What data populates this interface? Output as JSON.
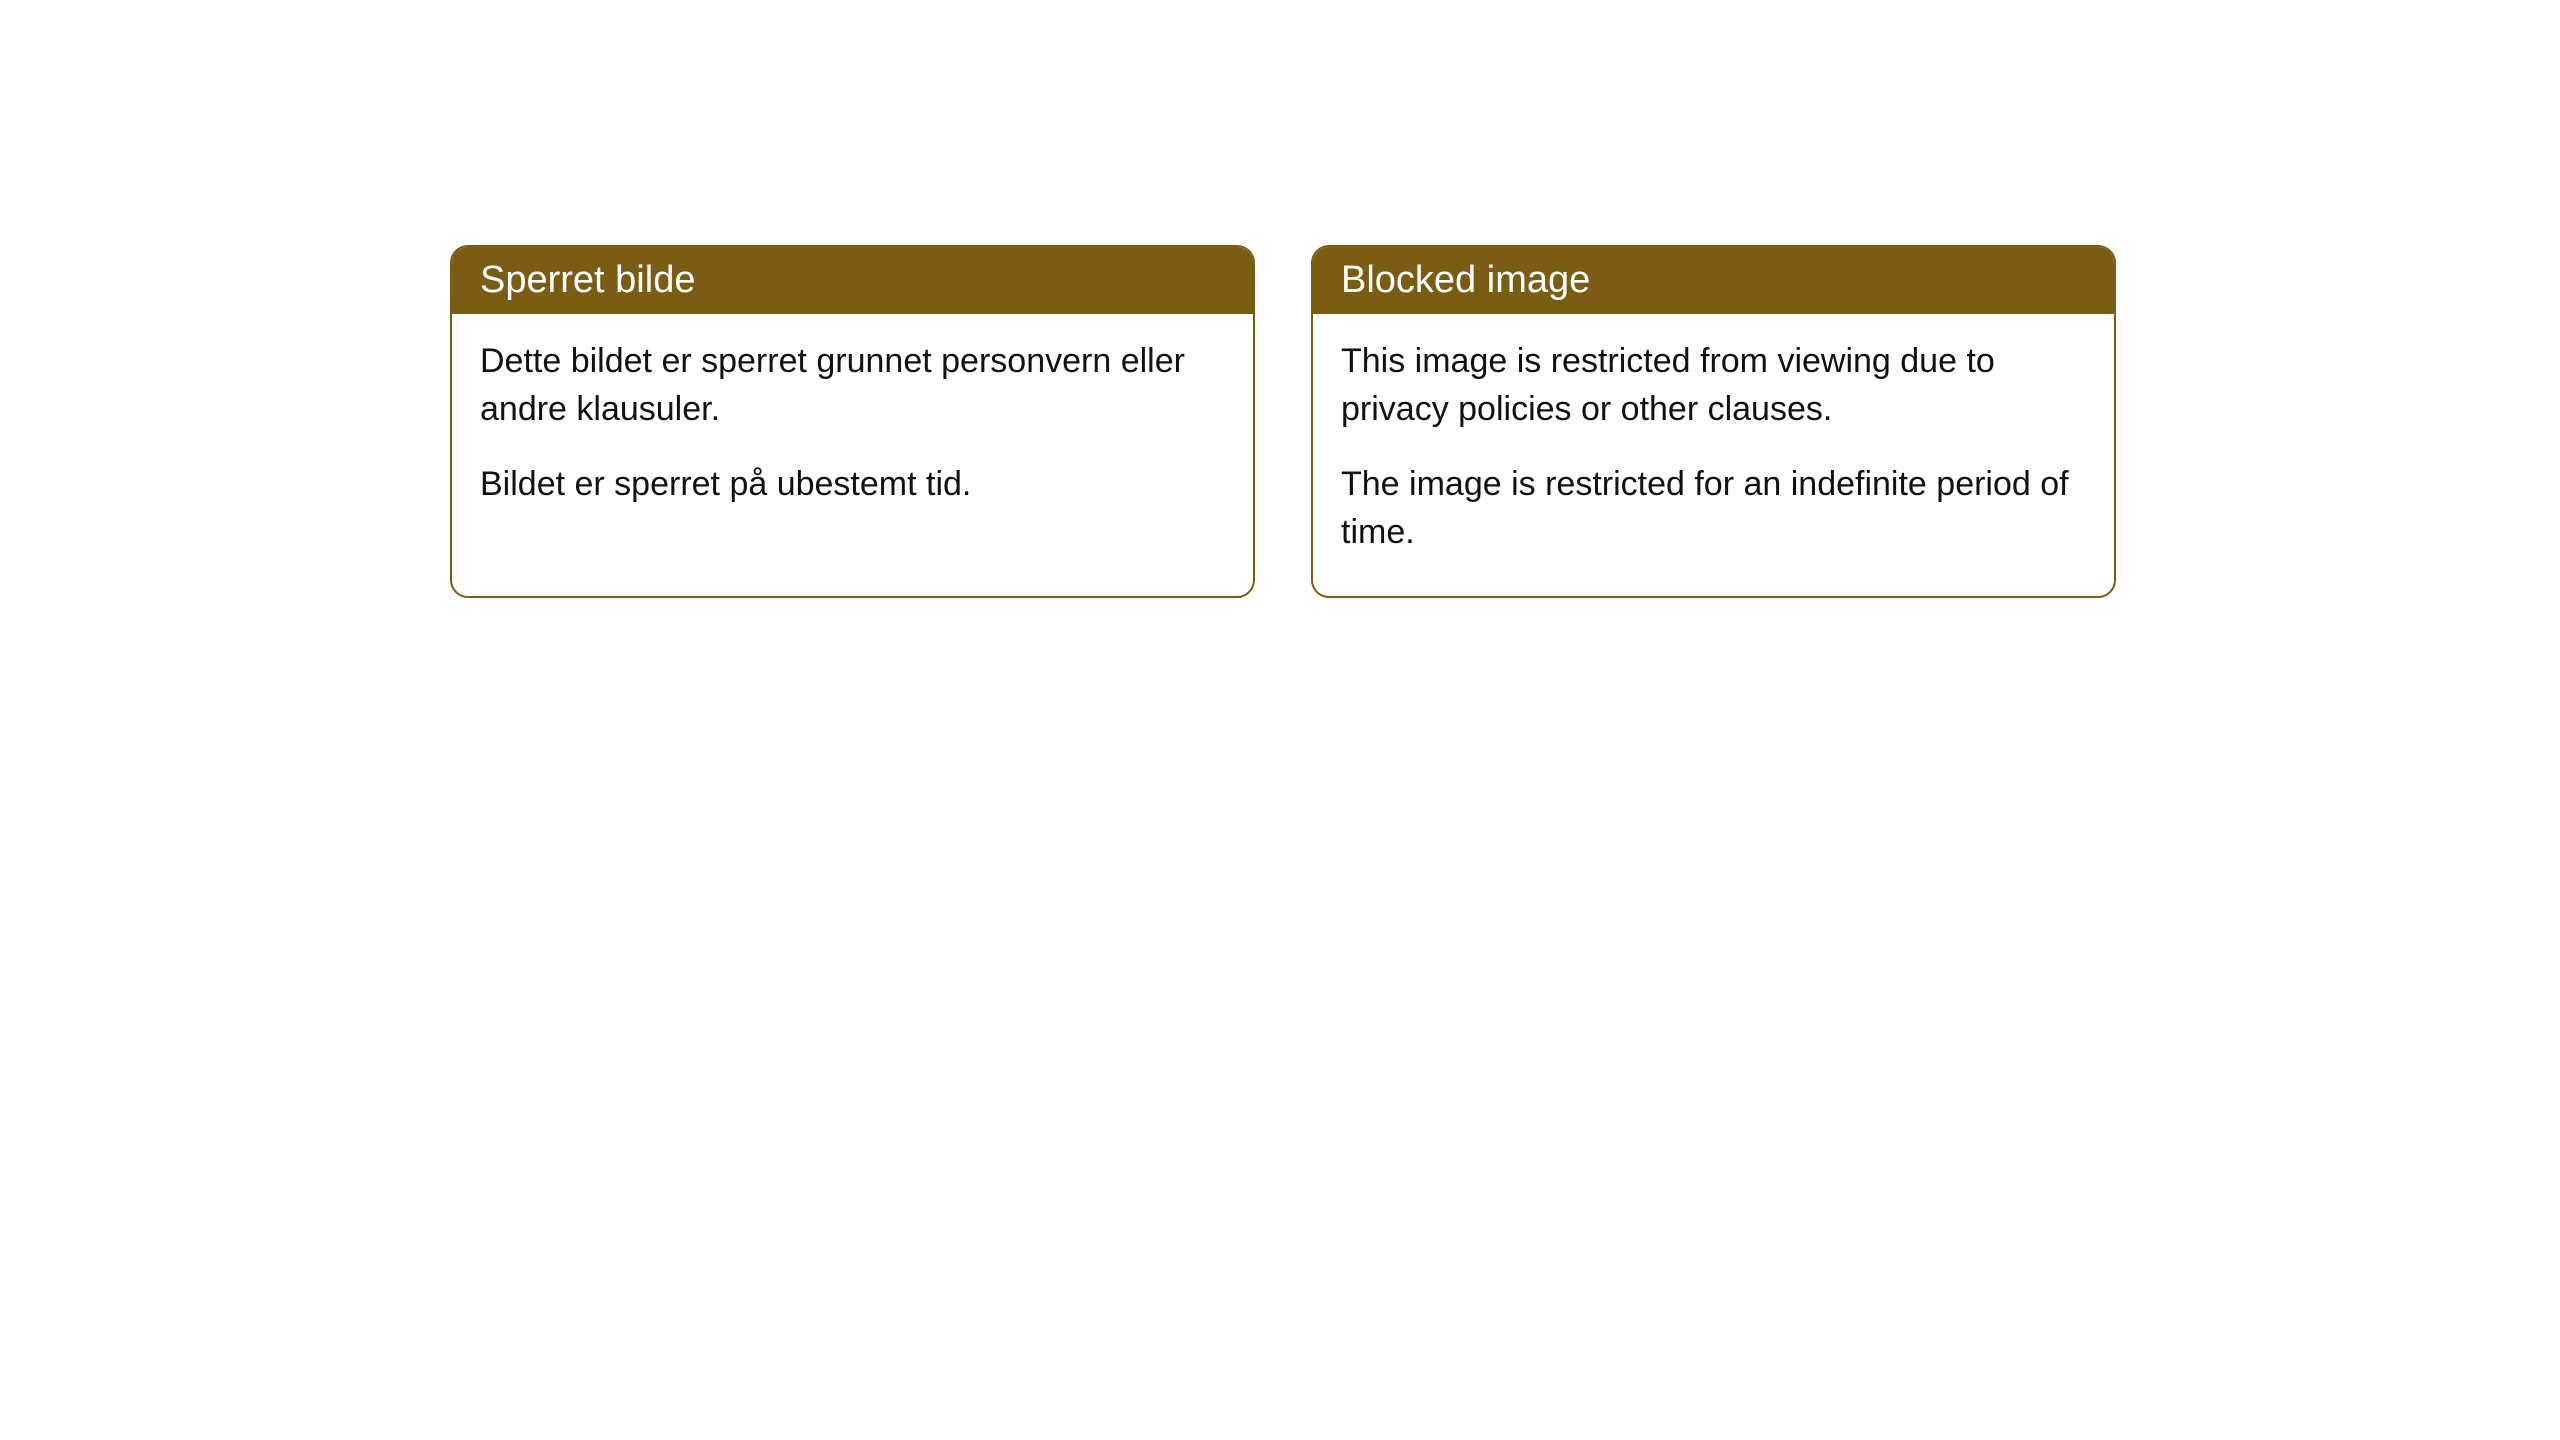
{
  "cards": [
    {
      "title": "Sperret bilde",
      "paragraph1": "Dette bildet er sperret grunnet personvern eller andre klausuler.",
      "paragraph2": "Bildet er sperret på ubestemt tid."
    },
    {
      "title": "Blocked image",
      "paragraph1": "This image is restricted from viewing due to privacy policies or other clauses.",
      "paragraph2": "The image is restricted for an indefinite period of time."
    }
  ],
  "styles": {
    "header_background": "#7a5d13",
    "header_text_color": "#ffffff",
    "border_color": "#7a5d13",
    "body_text_color": "#111111",
    "page_background": "#ffffff",
    "border_radius": 18,
    "title_fontsize": 38,
    "body_fontsize": 34
  }
}
